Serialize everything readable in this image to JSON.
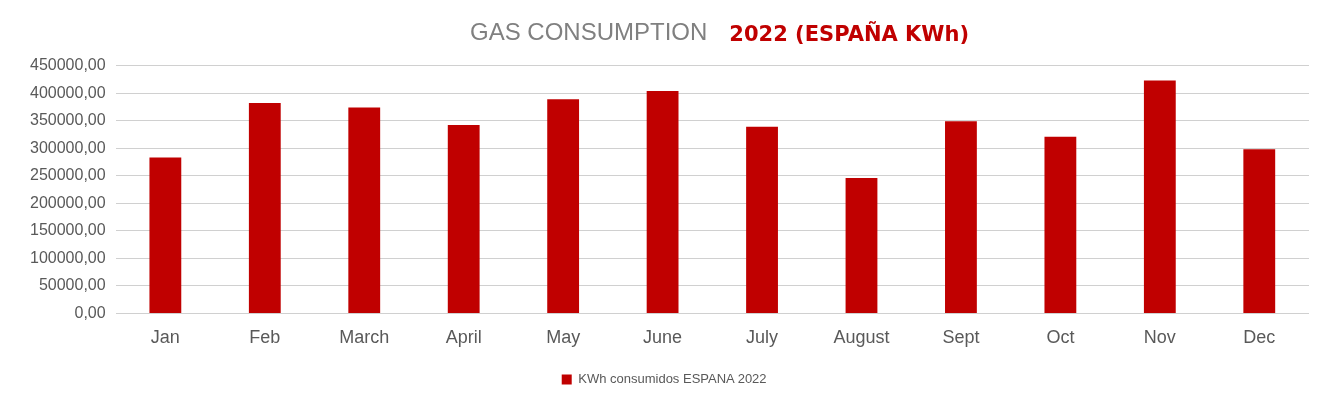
{
  "chart_data": {
    "type": "bar",
    "title": "GAS CONSUMPTION",
    "subtitle": "2022 (ESPAÑA KWh)",
    "categories": [
      "Jan",
      "Feb",
      "March",
      "April",
      "May",
      "June",
      "July",
      "August",
      "Sept",
      "Oct",
      "Nov",
      "Dec"
    ],
    "series": [
      {
        "name": "KWh consumidos ESPANA 2022",
        "color": "#c00000",
        "values": [
          283000,
          382000,
          374000,
          342000,
          389000,
          404000,
          339000,
          246000,
          349000,
          321000,
          423000,
          298000
        ]
      }
    ],
    "ylim": [
      0,
      450000
    ],
    "yticks": [
      {
        "value": 0,
        "label": "0,00"
      },
      {
        "value": 50000,
        "label": "50000,00"
      },
      {
        "value": 100000,
        "label": "100000,00"
      },
      {
        "value": 150000,
        "label": "150000,00"
      },
      {
        "value": 200000,
        "label": "200000,00"
      },
      {
        "value": 250000,
        "label": "250000,00"
      },
      {
        "value": 300000,
        "label": "300000,00"
      },
      {
        "value": 350000,
        "label": "350000,00"
      },
      {
        "value": 400000,
        "label": "400000,00"
      },
      {
        "value": 450000,
        "label": "450000,00"
      }
    ],
    "grid": "y",
    "legend": "bottom"
  }
}
